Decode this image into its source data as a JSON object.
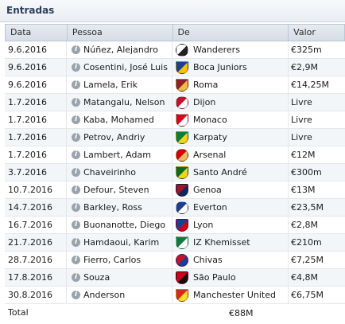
{
  "panel": {
    "title": "Entradas"
  },
  "columns": [
    "Data",
    "Pessoa",
    "De",
    "Valor"
  ],
  "rows": [
    {
      "date": "9.6.2016",
      "person": "Núñez, Alejandro",
      "club": "Wanderers",
      "value": "€325m",
      "crest": "wanderers-crest-icon",
      "crest_colors": [
        "#ffffff",
        "#222222"
      ]
    },
    {
      "date": "9.6.2016",
      "person": "Cosentini, José Luis",
      "club": "Boca Juniors",
      "value": "€2,9M",
      "crest": "boca-juniors-crest-icon",
      "crest_colors": [
        "#1b3f94",
        "#f6c500"
      ]
    },
    {
      "date": "9.6.2016",
      "person": "Lamela, Erik",
      "club": "Roma",
      "value": "€14,25M",
      "crest": "roma-crest-icon",
      "crest_colors": [
        "#8e1f2f",
        "#f0bc42"
      ]
    },
    {
      "date": "1.7.2016",
      "person": "Matangalu, Nelson",
      "club": "Dijon",
      "value": "Livre",
      "crest": "dijon-crest-icon",
      "crest_colors": [
        "#c8102e",
        "#ffffff"
      ]
    },
    {
      "date": "1.7.2016",
      "person": "Kaba, Mohamed",
      "club": "Monaco",
      "value": "Livre",
      "crest": "monaco-crest-icon",
      "crest_colors": [
        "#e2001a",
        "#ffffff"
      ]
    },
    {
      "date": "1.7.2016",
      "person": "Petrov, Andriy",
      "club": "Karpaty",
      "value": "Livre",
      "crest": "karpaty-crest-icon",
      "crest_colors": [
        "#0a7d3b",
        "#f2d21b"
      ]
    },
    {
      "date": "1.7.2016",
      "person": "Lambert, Adam",
      "club": "Arsenal",
      "value": "€12M",
      "crest": "arsenal-crest-icon",
      "crest_colors": [
        "#db0007",
        "#e6c163"
      ]
    },
    {
      "date": "3.7.2016",
      "person": "Chaveirinho",
      "club": "Santo André",
      "value": "€300m",
      "crest": "santo-andre-crest-icon",
      "crest_colors": [
        "#0a6a2b",
        "#f2d21b"
      ]
    },
    {
      "date": "10.7.2016",
      "person": "Defour, Steven",
      "club": "Genoa",
      "value": "€13M",
      "crest": "genoa-crest-icon",
      "crest_colors": [
        "#a0142b",
        "#0c2a5b"
      ]
    },
    {
      "date": "14.7.2016",
      "person": "Barkley, Ross",
      "club": "Everton",
      "value": "€23,5M",
      "crest": "everton-crest-icon",
      "crest_colors": [
        "#1b3f94",
        "#ffffff"
      ]
    },
    {
      "date": "16.7.2016",
      "person": "Buonanotte, Diego",
      "club": "Lyon",
      "value": "€2,8M",
      "crest": "lyon-crest-icon",
      "crest_colors": [
        "#1b3f94",
        "#d0021b"
      ]
    },
    {
      "date": "21.7.2016",
      "person": "Hamdaoui, Karim",
      "club": "IZ Khemisset",
      "value": "€210m",
      "crest": "iz-khemisset-crest-icon",
      "crest_colors": [
        "#0a7d3b",
        "#ffffff"
      ]
    },
    {
      "date": "28.7.2016",
      "person": "Fierro, Carlos",
      "club": "Chivas",
      "value": "€7,25M",
      "crest": "chivas-crest-icon",
      "crest_colors": [
        "#c8102e",
        "#1b3f94"
      ]
    },
    {
      "date": "17.8.2016",
      "person": "Souza",
      "club": "São Paulo",
      "value": "€4,8M",
      "crest": "sao-paulo-crest-icon",
      "crest_colors": [
        "#d0021b",
        "#111111"
      ]
    },
    {
      "date": "30.8.2016",
      "person": "Anderson",
      "club": "Manchester United",
      "value": "€6,75M",
      "crest": "manchester-united-crest-icon",
      "crest_colors": [
        "#da291c",
        "#fbe122"
      ]
    }
  ],
  "total": {
    "label": "Total",
    "value": "€88M"
  }
}
